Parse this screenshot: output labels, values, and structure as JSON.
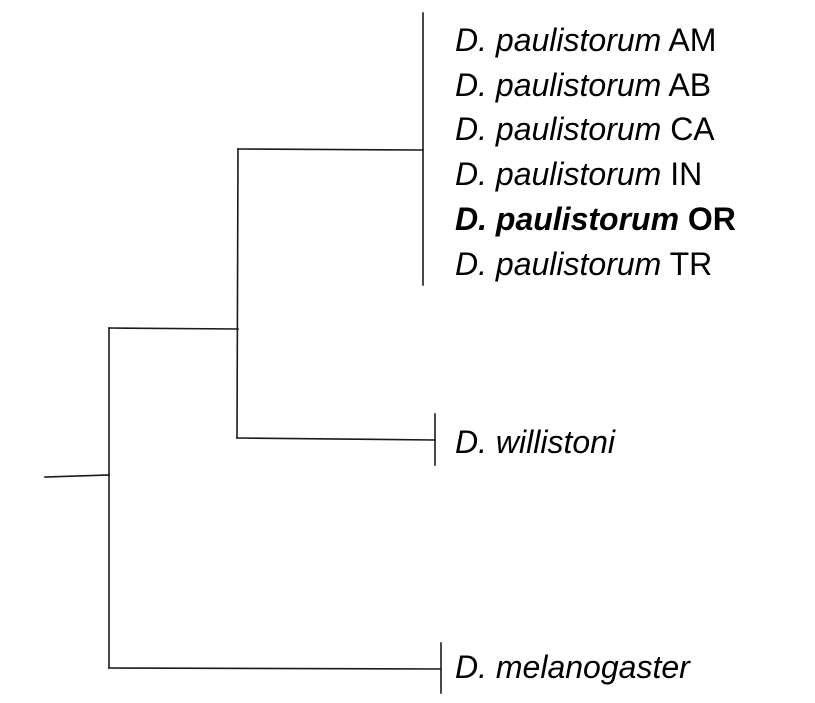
{
  "tree": {
    "clades": [
      {
        "id": "paulistorum",
        "taxa": [
          {
            "species": "D. paulistorum",
            "strain": "AM",
            "bold": false
          },
          {
            "species": "D. paulistorum",
            "strain": "AB",
            "bold": false
          },
          {
            "species": "D. paulistorum",
            "strain": "CA",
            "bold": false
          },
          {
            "species": "D. paulistorum",
            "strain": "IN",
            "bold": false
          },
          {
            "species": "D. paulistorum",
            "strain": "OR",
            "bold": true
          },
          {
            "species": "D. paulistorum",
            "strain": "TR",
            "bold": false
          }
        ]
      },
      {
        "id": "willistoni",
        "taxa": [
          {
            "species": "D. willistoni",
            "strain": "",
            "bold": false
          }
        ]
      },
      {
        "id": "melanogaster",
        "taxa": [
          {
            "species": "D. melanogaster",
            "strain": "",
            "bold": false
          }
        ]
      }
    ]
  }
}
